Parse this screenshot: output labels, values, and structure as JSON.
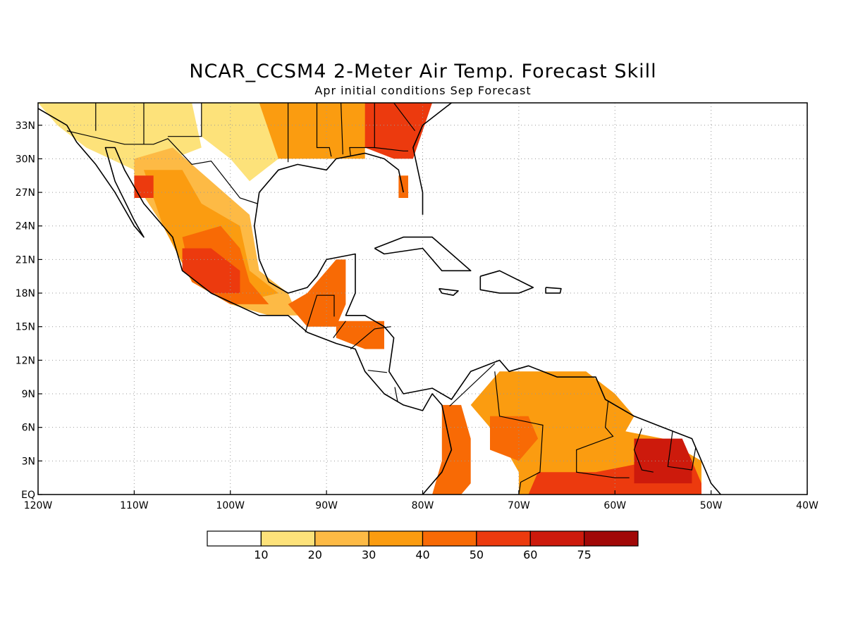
{
  "title": "NCAR_CCSM4 2-Meter Air Temp. Forecast Skill",
  "subtitle": "Apr initial conditions  Sep Forecast",
  "map": {
    "lon_range": [
      -120,
      -40
    ],
    "lat_range": [
      0,
      35
    ],
    "x_ticks": [
      {
        "lon": -120,
        "label": "120W"
      },
      {
        "lon": -110,
        "label": "110W"
      },
      {
        "lon": -100,
        "label": "100W"
      },
      {
        "lon": -90,
        "label": "90W"
      },
      {
        "lon": -80,
        "label": "80W"
      },
      {
        "lon": -70,
        "label": "70W"
      },
      {
        "lon": -60,
        "label": "60W"
      },
      {
        "lon": -50,
        "label": "50W"
      },
      {
        "lon": -40,
        "label": "40W"
      }
    ],
    "y_ticks": [
      {
        "lat": 0,
        "label": "EQ"
      },
      {
        "lat": 3,
        "label": "3N"
      },
      {
        "lat": 6,
        "label": "6N"
      },
      {
        "lat": 9,
        "label": "9N"
      },
      {
        "lat": 12,
        "label": "12N"
      },
      {
        "lat": 15,
        "label": "15N"
      },
      {
        "lat": 18,
        "label": "18N"
      },
      {
        "lat": 21,
        "label": "21N"
      },
      {
        "lat": 24,
        "label": "24N"
      },
      {
        "lat": 27,
        "label": "27N"
      },
      {
        "lat": 30,
        "label": "30N"
      },
      {
        "lat": 33,
        "label": "33N"
      }
    ],
    "grid": true
  },
  "colorbar": {
    "colors": [
      "#ffffff",
      "#fde27a",
      "#fdba45",
      "#fb9c10",
      "#f86a05",
      "#ec3a0e",
      "#cd1a0c",
      "#a10807"
    ],
    "labels": [
      "10",
      "20",
      "30",
      "40",
      "50",
      "60",
      "75"
    ]
  },
  "skill_regions": [
    {
      "name": "southeast-us",
      "color": "#ec3a0e",
      "lonlat": [
        [
          -86,
          35
        ],
        [
          -79,
          35
        ],
        [
          -81,
          30
        ],
        [
          -83,
          30
        ],
        [
          -86,
          31
        ],
        [
          -89,
          31
        ],
        [
          -90,
          33
        ]
      ]
    },
    {
      "name": "gulf-coast-us",
      "color": "#fb9c10",
      "lonlat": [
        [
          -97,
          35
        ],
        [
          -86,
          35
        ],
        [
          -86,
          30
        ],
        [
          -91,
          30
        ],
        [
          -96,
          30
        ],
        [
          -98,
          32
        ]
      ]
    },
    {
      "name": "texas",
      "color": "#fde27a",
      "lonlat": [
        [
          -103,
          35
        ],
        [
          -97,
          35
        ],
        [
          -95,
          30
        ],
        [
          -98,
          28
        ],
        [
          -100,
          30
        ],
        [
          -103,
          32
        ]
      ]
    },
    {
      "name": "florida-spot",
      "color": "#f86a05",
      "lonlat": [
        [
          -82.5,
          28.5
        ],
        [
          -81.5,
          28.5
        ],
        [
          -81.5,
          26.5
        ],
        [
          -82.5,
          26.5
        ]
      ]
    },
    {
      "name": "northwest-mexico-yellow",
      "color": "#fde27a",
      "lonlat": [
        [
          -120,
          35
        ],
        [
          -104,
          35
        ],
        [
          -103,
          31
        ],
        [
          -106,
          30
        ],
        [
          -110,
          29
        ],
        [
          -115,
          31
        ],
        [
          -118,
          33
        ]
      ]
    },
    {
      "name": "western-mexico",
      "color": "#fdba45",
      "lonlat": [
        [
          -110,
          30
        ],
        [
          -106,
          31
        ],
        [
          -102,
          28
        ],
        [
          -98,
          25
        ],
        [
          -97,
          20
        ],
        [
          -94,
          18
        ],
        [
          -93,
          16
        ],
        [
          -96,
          16
        ],
        [
          -100,
          17
        ],
        [
          -104,
          19
        ],
        [
          -107,
          24
        ],
        [
          -110,
          28
        ]
      ]
    },
    {
      "name": "mexico-interior",
      "color": "#fb9c10",
      "lonlat": [
        [
          -109,
          29
        ],
        [
          -105,
          29
        ],
        [
          -103,
          26
        ],
        [
          -99,
          24
        ],
        [
          -98,
          20
        ],
        [
          -95,
          18
        ],
        [
          -100,
          17
        ],
        [
          -104,
          19
        ],
        [
          -107,
          24
        ]
      ]
    },
    {
      "name": "central-mexico",
      "color": "#f86a05",
      "lonlat": [
        [
          -105,
          23
        ],
        [
          -101,
          24
        ],
        [
          -99,
          22
        ],
        [
          -98,
          19
        ],
        [
          -96,
          17
        ],
        [
          -100,
          17
        ],
        [
          -104,
          19
        ]
      ]
    },
    {
      "name": "central-mexico-core",
      "color": "#ec3a0e",
      "lonlat": [
        [
          -105,
          22
        ],
        [
          -102,
          22
        ],
        [
          -99,
          20
        ],
        [
          -99,
          18
        ],
        [
          -102,
          18
        ],
        [
          -105,
          20
        ]
      ]
    },
    {
      "name": "sonora-spot",
      "color": "#ec3a0e",
      "lonlat": [
        [
          -110,
          28.5
        ],
        [
          -108,
          28.5
        ],
        [
          -108,
          26.5
        ],
        [
          -110,
          26.5
        ]
      ]
    },
    {
      "name": "yucatan-guatemala",
      "color": "#f86a05",
      "lonlat": [
        [
          -92,
          18
        ],
        [
          -89,
          21
        ],
        [
          -88,
          21
        ],
        [
          -88,
          17
        ],
        [
          -89,
          15
        ],
        [
          -92,
          15
        ],
        [
          -94,
          17
        ]
      ]
    },
    {
      "name": "honduras",
      "color": "#f86a05",
      "lonlat": [
        [
          -89,
          15.5
        ],
        [
          -84,
          15.5
        ],
        [
          -84,
          13
        ],
        [
          -86,
          13
        ],
        [
          -89,
          14
        ]
      ]
    },
    {
      "name": "colombia-west",
      "color": "#f86a05",
      "lonlat": [
        [
          -78,
          8
        ],
        [
          -76,
          8
        ],
        [
          -75,
          5
        ],
        [
          -75,
          1
        ],
        [
          -76,
          0
        ],
        [
          -79,
          0
        ],
        [
          -78,
          3
        ]
      ]
    },
    {
      "name": "venezuela",
      "color": "#fb9c10",
      "lonlat": [
        [
          -72,
          11
        ],
        [
          -63,
          11
        ],
        [
          -60,
          9
        ],
        [
          -58,
          7
        ],
        [
          -60,
          4
        ],
        [
          -65,
          2
        ],
        [
          -70,
          2
        ],
        [
          -72,
          5
        ],
        [
          -75,
          8
        ]
      ]
    },
    {
      "name": "venezuela-core",
      "color": "#f86a05",
      "lonlat": [
        [
          -73,
          7
        ],
        [
          -69,
          7
        ],
        [
          -68,
          5
        ],
        [
          -70,
          3
        ],
        [
          -73,
          4
        ]
      ]
    },
    {
      "name": "guianas-brazil",
      "color": "#fb9c10",
      "lonlat": [
        [
          -70,
          3
        ],
        [
          -61,
          6
        ],
        [
          -55,
          5
        ],
        [
          -51,
          3
        ],
        [
          -51,
          0
        ],
        [
          -70,
          0
        ]
      ]
    },
    {
      "name": "northern-brazil",
      "color": "#ec3a0e",
      "lonlat": [
        [
          -68,
          2
        ],
        [
          -62,
          2
        ],
        [
          -56,
          3
        ],
        [
          -52,
          3
        ],
        [
          -51,
          1
        ],
        [
          -51,
          0
        ],
        [
          -69,
          0
        ]
      ]
    },
    {
      "name": "french-guiana",
      "color": "#cd1a0c",
      "lonlat": [
        [
          -58,
          5
        ],
        [
          -53,
          5
        ],
        [
          -52,
          3
        ],
        [
          -52,
          1
        ],
        [
          -58,
          1
        ]
      ]
    }
  ],
  "coastlines": [
    {
      "name": "north-america-pacific",
      "lonlat": [
        [
          -120,
          34.5
        ],
        [
          -117,
          33
        ],
        [
          -116,
          31.5
        ],
        [
          -114,
          29.5
        ],
        [
          -112,
          27
        ],
        [
          -110,
          24
        ],
        [
          -109,
          23
        ],
        [
          -110,
          24.5
        ],
        [
          -112,
          28
        ],
        [
          -113,
          31
        ],
        [
          -112,
          31
        ],
        [
          -111,
          29
        ],
        [
          -109,
          26
        ],
        [
          -106,
          23
        ],
        [
          -105,
          20
        ],
        [
          -102,
          18
        ],
        [
          -97,
          16
        ],
        [
          -94,
          16
        ],
        [
          -92,
          14.5
        ],
        [
          -89,
          13.5
        ],
        [
          -87,
          13
        ],
        [
          -86,
          11
        ],
        [
          -85,
          10
        ],
        [
          -84,
          9
        ],
        [
          -82,
          8
        ],
        [
          -80,
          7.5
        ],
        [
          -79,
          9
        ],
        [
          -78,
          8
        ],
        [
          -77,
          4
        ],
        [
          -78,
          2
        ],
        [
          -80,
          0
        ]
      ]
    },
    {
      "name": "gulf-of-mexico",
      "lonlat": [
        [
          -80,
          25
        ],
        [
          -80,
          27
        ],
        [
          -81,
          31
        ],
        [
          -80,
          33
        ],
        [
          -77,
          35
        ],
        [
          -76,
          36
        ]
      ]
    },
    {
      "name": "gulf-coast",
      "lonlat": [
        [
          -82,
          27
        ],
        [
          -82.5,
          29
        ],
        [
          -84,
          30
        ],
        [
          -86,
          30.5
        ],
        [
          -89,
          30
        ],
        [
          -90,
          29
        ],
        [
          -93,
          29.5
        ],
        [
          -95,
          29
        ],
        [
          -97,
          27
        ],
        [
          -97.5,
          24
        ],
        [
          -97,
          21
        ],
        [
          -96,
          19
        ],
        [
          -94,
          18
        ],
        [
          -92,
          18.5
        ],
        [
          -91,
          19.5
        ],
        [
          -90,
          21
        ],
        [
          -87,
          21.5
        ],
        [
          -87,
          18
        ],
        [
          -88,
          16
        ],
        [
          -86,
          16
        ],
        [
          -84,
          15
        ],
        [
          -83,
          14
        ],
        [
          -83.5,
          11
        ],
        [
          -82,
          9
        ],
        [
          -79,
          9.5
        ],
        [
          -77,
          8.5
        ],
        [
          -75,
          11
        ],
        [
          -72,
          12
        ],
        [
          -71,
          11
        ],
        [
          -69,
          11.5
        ],
        [
          -66,
          10.5
        ],
        [
          -62,
          10.5
        ],
        [
          -61,
          8.5
        ],
        [
          -58,
          7
        ],
        [
          -55,
          6
        ],
        [
          -52,
          5
        ],
        [
          -50,
          1
        ],
        [
          -49,
          0
        ]
      ]
    },
    {
      "name": "cuba",
      "lonlat": [
        [
          -85,
          22
        ],
        [
          -82,
          23
        ],
        [
          -79,
          23
        ],
        [
          -75,
          20
        ],
        [
          -78,
          20
        ],
        [
          -80,
          22
        ],
        [
          -84,
          21.5
        ],
        [
          -85,
          22
        ]
      ]
    },
    {
      "name": "hispaniola",
      "lonlat": [
        [
          -74,
          19.5
        ],
        [
          -72,
          20
        ],
        [
          -68.5,
          18.5
        ],
        [
          -70,
          18
        ],
        [
          -72,
          18
        ],
        [
          -74,
          18.3
        ],
        [
          -74,
          19.5
        ]
      ]
    },
    {
      "name": "jamaica",
      "lonlat": [
        [
          -78.3,
          18.4
        ],
        [
          -76.3,
          18.2
        ],
        [
          -76.8,
          17.8
        ],
        [
          -78,
          18
        ],
        [
          -78.3,
          18.4
        ]
      ]
    },
    {
      "name": "puerto-rico",
      "lonlat": [
        [
          -67.2,
          18.5
        ],
        [
          -65.6,
          18.4
        ],
        [
          -65.7,
          18
        ],
        [
          -67.2,
          18
        ],
        [
          -67.2,
          18.5
        ]
      ]
    }
  ],
  "borders": [
    {
      "name": "us-mexico-border",
      "lonlat": [
        [
          -117,
          32.5
        ],
        [
          -111,
          31.3
        ],
        [
          -108,
          31.3
        ],
        [
          -106.5,
          31.8
        ],
        [
          -104,
          29.5
        ],
        [
          -102,
          29.8
        ],
        [
          -99,
          26.5
        ],
        [
          -97.2,
          26
        ]
      ]
    },
    {
      "name": "us-state-lines",
      "lonlat": [
        [
          -114,
          35
        ],
        [
          -114,
          32.5
        ]
      ]
    },
    {
      "name": "us-state-lines-2",
      "lonlat": [
        [
          -109,
          35
        ],
        [
          -109,
          31.3
        ]
      ]
    },
    {
      "name": "us-state-lines-3",
      "lonlat": [
        [
          -103,
          35
        ],
        [
          -103,
          32
        ],
        [
          -106.5,
          32
        ]
      ]
    },
    {
      "name": "us-state-lines-4",
      "lonlat": [
        [
          -94,
          35
        ],
        [
          -94,
          33
        ],
        [
          -94,
          29.7
        ]
      ]
    },
    {
      "name": "us-state-lines-5",
      "lonlat": [
        [
          -91,
          35
        ],
        [
          -91,
          31
        ],
        [
          -89.7,
          31
        ],
        [
          -89.5,
          30.2
        ]
      ]
    },
    {
      "name": "us-state-lines-6",
      "lonlat": [
        [
          -88.5,
          35
        ],
        [
          -88.3,
          30.4
        ]
      ]
    },
    {
      "name": "us-state-lines-7",
      "lonlat": [
        [
          -85,
          35
        ],
        [
          -85,
          31
        ],
        [
          -87.6,
          31
        ],
        [
          -87.5,
          30.3
        ]
      ]
    },
    {
      "name": "us-state-lines-8",
      "lonlat": [
        [
          -85,
          31
        ],
        [
          -82,
          30.7
        ],
        [
          -81.5,
          30.7
        ]
      ]
    },
    {
      "name": "us-state-lines-9",
      "lonlat": [
        [
          -83,
          35
        ],
        [
          -80.8,
          32.5
        ]
      ]
    },
    {
      "name": "central-america-borders",
      "lonlat": [
        [
          -92.2,
          14.5
        ],
        [
          -91,
          17.8
        ],
        [
          -89.2,
          17.8
        ],
        [
          -89.2,
          15.9
        ]
      ]
    },
    {
      "name": "central-america-borders-2",
      "lonlat": [
        [
          -89.3,
          14
        ],
        [
          -88,
          15.5
        ]
      ]
    },
    {
      "name": "central-america-borders-3",
      "lonlat": [
        [
          -87.5,
          13
        ],
        [
          -85,
          14.8
        ],
        [
          -83.3,
          15
        ]
      ]
    },
    {
      "name": "central-america-borders-4",
      "lonlat": [
        [
          -85.7,
          11.1
        ],
        [
          -83.7,
          10.9
        ]
      ]
    },
    {
      "name": "central-america-borders-5",
      "lonlat": [
        [
          -82.9,
          9.6
        ],
        [
          -82.6,
          8.3
        ]
      ]
    },
    {
      "name": "south-america-borders",
      "lonlat": [
        [
          -77.2,
          7.9
        ],
        [
          -72.5,
          11.7
        ]
      ]
    },
    {
      "name": "south-america-borders-2",
      "lonlat": [
        [
          -72.5,
          11
        ],
        [
          -72,
          7
        ],
        [
          -67.5,
          6.2
        ],
        [
          -67.8,
          2
        ],
        [
          -69.8,
          1.1
        ],
        [
          -70,
          0
        ]
      ]
    },
    {
      "name": "south-america-borders-3",
      "lonlat": [
        [
          -60.7,
          8.4
        ],
        [
          -61,
          6
        ],
        [
          -60.2,
          5.2
        ],
        [
          -64,
          4
        ],
        [
          -64,
          2
        ],
        [
          -60,
          1.5
        ],
        [
          -58.5,
          1.5
        ]
      ]
    },
    {
      "name": "south-america-borders-4",
      "lonlat": [
        [
          -57.2,
          5.9
        ],
        [
          -58,
          4
        ],
        [
          -57.2,
          2.2
        ],
        [
          -56,
          2
        ]
      ]
    },
    {
      "name": "south-america-borders-5",
      "lonlat": [
        [
          -54,
          5.7
        ],
        [
          -54.5,
          2.5
        ],
        [
          -52,
          2.2
        ],
        [
          -51.6,
          4.2
        ]
      ]
    }
  ]
}
